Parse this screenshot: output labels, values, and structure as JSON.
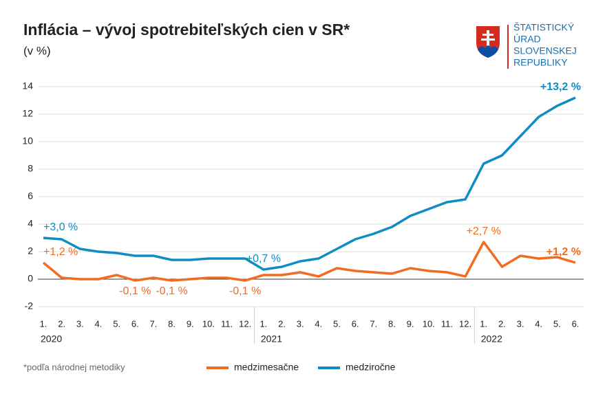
{
  "chart_data": {
    "type": "line",
    "title": "Inflácia – vývoj spotrebiteľských cien v SR*",
    "subtitle": "(v %)",
    "footnote": "*podľa národnej metodiky",
    "logo": {
      "lines": [
        "ŠTATISTICKÝ",
        "ÚRAD",
        "SLOVENSKEJ",
        "REPUBLIKY"
      ]
    },
    "categories": [
      "1.",
      "2.",
      "3.",
      "4.",
      "5.",
      "6.",
      "7.",
      "8.",
      "9.",
      "10.",
      "11.",
      "12.",
      "1.",
      "2.",
      "3.",
      "4.",
      "5.",
      "6.",
      "7.",
      "8.",
      "9.",
      "10.",
      "11.",
      "12.",
      "1.",
      "2.",
      "3.",
      "4.",
      "5.",
      "6."
    ],
    "years": [
      "2020",
      "2021",
      "2022"
    ],
    "ylim": [
      -2,
      14
    ],
    "yticks": [
      -2,
      0,
      2,
      4,
      6,
      8,
      10,
      12,
      14
    ],
    "grid": true,
    "series": [
      {
        "name": "medzimesačne",
        "color": "#f26b21",
        "values": [
          1.2,
          0.1,
          0.0,
          0.0,
          0.3,
          -0.1,
          0.1,
          -0.1,
          0.0,
          0.1,
          0.1,
          -0.1,
          0.3,
          0.3,
          0.5,
          0.2,
          0.8,
          0.6,
          0.5,
          0.4,
          0.8,
          0.6,
          0.5,
          0.2,
          2.7,
          0.9,
          1.7,
          1.5,
          1.6,
          1.2
        ],
        "value_labels": [
          "+1,2 %",
          null,
          null,
          null,
          null,
          "-0,1 %",
          null,
          "-0,1 %",
          null,
          null,
          null,
          "-0,1 %",
          null,
          null,
          null,
          null,
          null,
          null,
          null,
          null,
          null,
          null,
          null,
          null,
          "+2,7 %",
          null,
          null,
          null,
          null,
          "+1,2 %"
        ]
      },
      {
        "name": "medziročne",
        "color": "#0e8cc4",
        "values": [
          3.0,
          2.9,
          2.2,
          2.0,
          1.9,
          1.7,
          1.7,
          1.4,
          1.4,
          1.5,
          1.5,
          1.5,
          0.7,
          0.9,
          1.3,
          1.5,
          2.2,
          2.9,
          3.3,
          3.8,
          4.6,
          5.1,
          5.6,
          5.8,
          8.4,
          9.0,
          10.4,
          11.8,
          12.6,
          13.2
        ],
        "value_labels": [
          "+3,0 %",
          null,
          null,
          null,
          null,
          null,
          null,
          null,
          null,
          null,
          null,
          null,
          "+0,7 %",
          null,
          null,
          null,
          null,
          null,
          null,
          null,
          null,
          null,
          null,
          null,
          null,
          null,
          null,
          null,
          null,
          "+13,2 %"
        ]
      }
    ]
  }
}
